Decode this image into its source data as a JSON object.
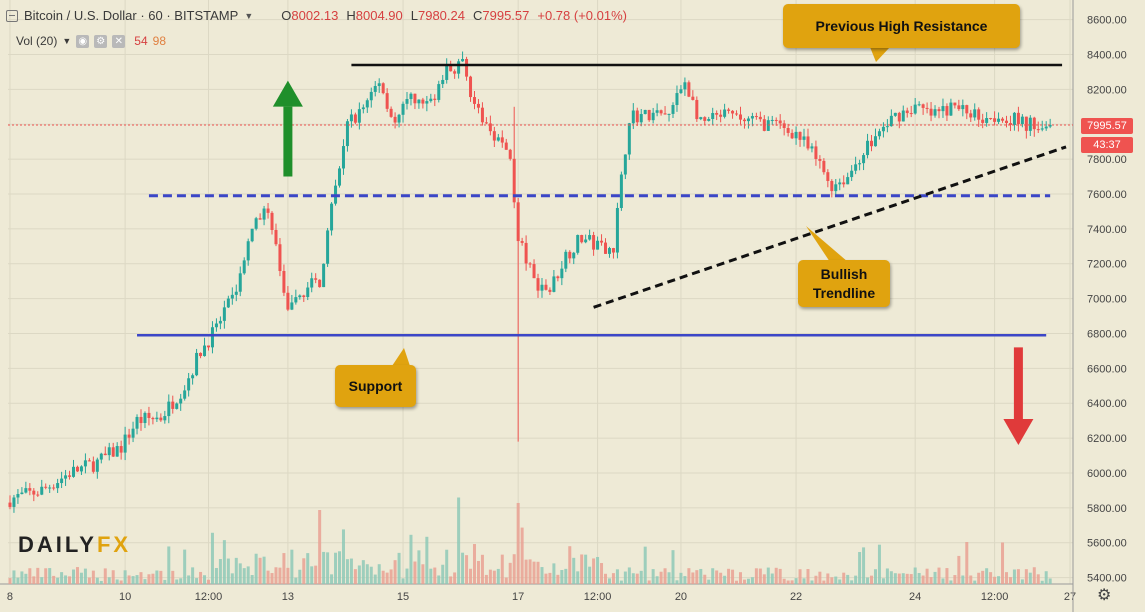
{
  "header": {
    "symbol": "Bitcoin / U.S. Dollar · 60 · BITSTAMP",
    "ohlc": [
      {
        "k": "O",
        "v": "8002.13"
      },
      {
        "k": "H",
        "v": "8004.90"
      },
      {
        "k": "L",
        "v": "7980.24"
      },
      {
        "k": "C",
        "v": "7995.57"
      }
    ],
    "change": "+0.78 (+0.01%)"
  },
  "volume_legend": {
    "label": "Vol (20)",
    "value_1": "54",
    "value_2": "98"
  },
  "price_tags": {
    "last_price": "7995.57",
    "countdown": "43:37"
  },
  "annotations": {
    "resistance": "Previous High Resistance",
    "support": "Support",
    "trendline": [
      "Bullish",
      "Trendline"
    ]
  },
  "logo": {
    "part1": "DAILY",
    "part2": "FX"
  },
  "colors": {
    "background": "#eeead6",
    "up": "#26a69a",
    "down": "#ef5350",
    "level_blue": "#3b46c7",
    "callout": "#e0a30f",
    "arrow_up": "#1f8f2b",
    "arrow_down": "#e03a3a"
  },
  "chart_data": {
    "type": "candlestick",
    "symbol": "Bitcoin / U.S. Dollar",
    "timeframe": "60",
    "exchange": "BITSTAMP",
    "x_tick_labels": [
      "8",
      "10",
      "12:00",
      "13",
      "15",
      "17",
      "12:00",
      "20",
      "22",
      "24",
      "12:00",
      "27"
    ],
    "x_tick_index": [
      0,
      29,
      50,
      70,
      99,
      128,
      148,
      169,
      198,
      228,
      248,
      267
    ],
    "y_ticks": [
      5400,
      5600,
      5800,
      6000,
      6200,
      6400,
      6600,
      6800,
      7000,
      7200,
      7400,
      7600,
      7800,
      8000,
      8200,
      8400,
      8600
    ],
    "y_tick_labels": [
      "5400.00",
      "5600.00",
      "5800.00",
      "6000.00",
      "6200.00",
      "6400.00",
      "6600.00",
      "6800.00",
      "7000.00",
      "7200.00",
      "7400.00",
      "7600.00",
      "7800.00",
      "8000.00",
      "8200.00",
      "8400.00",
      "8600.00"
    ],
    "ylim": [
      5380,
      8680
    ],
    "last_price": 7995.57,
    "price_path_anchors": [
      [
        0,
        5850
      ],
      [
        8,
        5900
      ],
      [
        15,
        6000
      ],
      [
        22,
        6060
      ],
      [
        28,
        6150
      ],
      [
        32,
        6300
      ],
      [
        38,
        6320
      ],
      [
        44,
        6500
      ],
      [
        48,
        6700
      ],
      [
        52,
        6830
      ],
      [
        56,
        7000
      ],
      [
        60,
        7300
      ],
      [
        64,
        7550
      ],
      [
        67,
        7300
      ],
      [
        70,
        6900
      ],
      [
        74,
        7050
      ],
      [
        78,
        7100
      ],
      [
        81,
        7500
      ],
      [
        85,
        8000
      ],
      [
        89,
        8100
      ],
      [
        93,
        8250
      ],
      [
        97,
        8000
      ],
      [
        101,
        8150
      ],
      [
        105,
        8100
      ],
      [
        110,
        8300
      ],
      [
        114,
        8350
      ],
      [
        118,
        8050
      ],
      [
        122,
        7950
      ],
      [
        126,
        7800
      ],
      [
        128,
        7350
      ],
      [
        132,
        7100
      ],
      [
        136,
        7050
      ],
      [
        140,
        7250
      ],
      [
        144,
        7350
      ],
      [
        148,
        7300
      ],
      [
        152,
        7300
      ],
      [
        156,
        8050
      ],
      [
        160,
        8050
      ],
      [
        166,
        8050
      ],
      [
        170,
        8250
      ],
      [
        174,
        8000
      ],
      [
        180,
        8050
      ],
      [
        186,
        8020
      ],
      [
        192,
        8000
      ],
      [
        198,
        7950
      ],
      [
        203,
        7800
      ],
      [
        207,
        7650
      ],
      [
        211,
        7700
      ],
      [
        215,
        7850
      ],
      [
        219,
        7950
      ],
      [
        223,
        8050
      ],
      [
        228,
        8100
      ],
      [
        232,
        8050
      ],
      [
        238,
        8100
      ],
      [
        244,
        8050
      ],
      [
        250,
        8050
      ],
      [
        256,
        8000
      ],
      [
        262,
        7995.57
      ]
    ],
    "volume_profile": "low, rising after 12 and after 17",
    "levels": [
      {
        "name": "Previous High Resistance",
        "price": 8340,
        "style": "solid",
        "color": "#111111",
        "from_index": 86,
        "to_index": 265
      },
      {
        "name": "Dashed resistance / support",
        "price": 7590,
        "style": "dashed",
        "color": "#3b46c7",
        "from_index": 35,
        "to_index": 262
      },
      {
        "name": "Support",
        "price": 6790,
        "style": "solid",
        "color": "#3b46c7",
        "from_index": 32,
        "to_index": 261
      }
    ],
    "trendlines": [
      {
        "name": "Bullish Trendline",
        "style": "dashed",
        "color": "#111111",
        "start": {
          "index": 147,
          "price": 6950
        },
        "end": {
          "index": 266,
          "price": 7870
        }
      }
    ],
    "arrows": [
      {
        "direction": "up",
        "color": "#1f8f2b",
        "at_index": 70,
        "price_from": 7700,
        "price_to": 8250
      },
      {
        "direction": "down",
        "color": "#e03a3a",
        "at_index": 254,
        "price_from": 6720,
        "price_to": 6160
      }
    ]
  }
}
